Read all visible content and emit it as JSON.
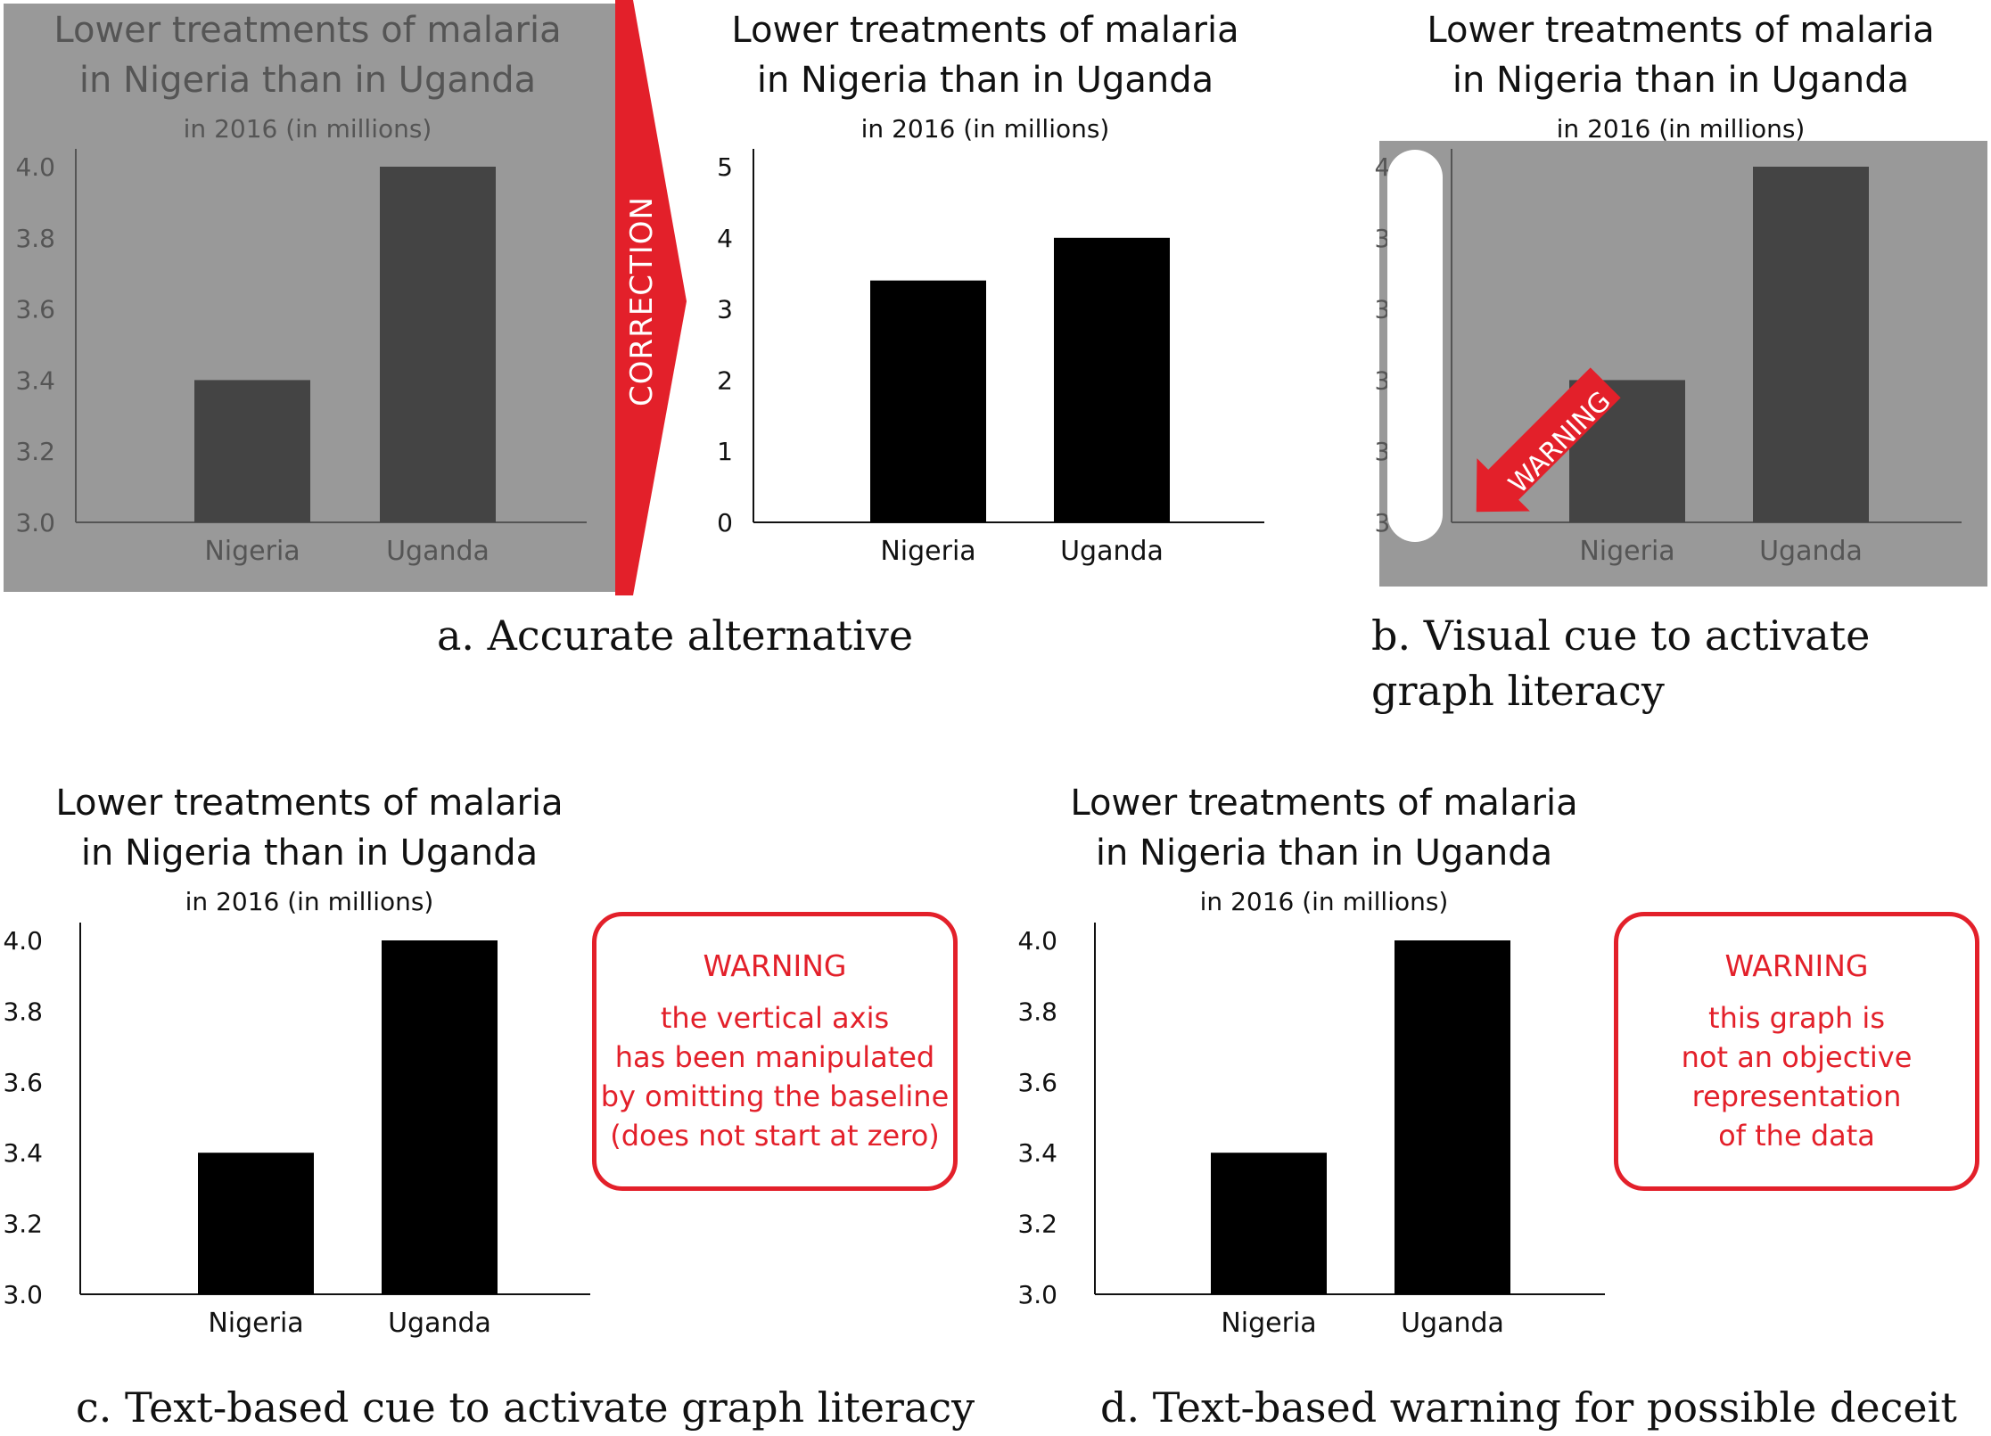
{
  "panel_a": {
    "caption": "a. Accurate alternative",
    "correction_label": "CORRECTION"
  },
  "panel_b": {
    "caption": "b. Visual cue to activate graph literacy",
    "warning_arrow_label": "WARNING"
  },
  "panel_c": {
    "caption": "c. Text-based cue to activate graph literacy",
    "warning_title": "WARNING",
    "warning_text": "the vertical axis\nhas been manipulated\nby omitting the baseline\n(does not start at zero)"
  },
  "panel_d": {
    "caption": "d. Text-based warning for possible deceit",
    "warning_title": "WARNING",
    "warning_text": "this graph is\nnot an objective\nrepresentation\nof the data"
  },
  "colors": {
    "accent_red": "#e3202a",
    "dimmed_background": "#999999",
    "dimmed_bar": "#444444",
    "bar": "#000000"
  },
  "chart_data": [
    {
      "id": "a_left_misleading_dimmed",
      "type": "bar",
      "title": "Lower treatments of malaria\nin Nigeria than in Uganda",
      "subtitle": "in 2016 (in millions)",
      "categories": [
        "Nigeria",
        "Uganda"
      ],
      "values": [
        3.4,
        4.0
      ],
      "ylim": [
        3.0,
        4.0
      ],
      "yticks": [
        "3.0",
        "3.2",
        "3.4",
        "3.6",
        "3.8",
        "4.0"
      ],
      "dimmed": true
    },
    {
      "id": "a_right_accurate",
      "type": "bar",
      "title": "Lower treatments of malaria\nin Nigeria than in Uganda",
      "subtitle": "in 2016 (in millions)",
      "categories": [
        "Nigeria",
        "Uganda"
      ],
      "values": [
        3.4,
        4.0
      ],
      "ylim": [
        0,
        5
      ],
      "yticks": [
        "0",
        "1",
        "2",
        "3",
        "4",
        "5"
      ],
      "dimmed": false
    },
    {
      "id": "b_visual_cue",
      "type": "bar",
      "title": "Lower treatments of malaria\nin Nigeria than in Uganda",
      "subtitle": "in 2016 (in millions)",
      "categories": [
        "Nigeria",
        "Uganda"
      ],
      "values": [
        3.4,
        4.0
      ],
      "ylim": [
        3.0,
        4.0
      ],
      "yticks": [
        "3.0",
        "3.2",
        "3.4",
        "3.6",
        "3.8",
        "4.0"
      ],
      "dimmed": true
    },
    {
      "id": "c_text_cue",
      "type": "bar",
      "title": "Lower treatments of malaria\nin Nigeria than in Uganda",
      "subtitle": "in 2016 (in millions)",
      "categories": [
        "Nigeria",
        "Uganda"
      ],
      "values": [
        3.4,
        4.0
      ],
      "ylim": [
        3.0,
        4.0
      ],
      "yticks": [
        "3.0",
        "3.2",
        "3.4",
        "3.6",
        "3.8",
        "4.0"
      ],
      "dimmed": false
    },
    {
      "id": "d_text_warning",
      "type": "bar",
      "title": "Lower treatments of malaria\nin Nigeria than in Uganda",
      "subtitle": "in 2016 (in millions)",
      "categories": [
        "Nigeria",
        "Uganda"
      ],
      "values": [
        3.4,
        4.0
      ],
      "ylim": [
        3.0,
        4.0
      ],
      "yticks": [
        "3.0",
        "3.2",
        "3.4",
        "3.6",
        "3.8",
        "4.0"
      ],
      "dimmed": false
    }
  ]
}
